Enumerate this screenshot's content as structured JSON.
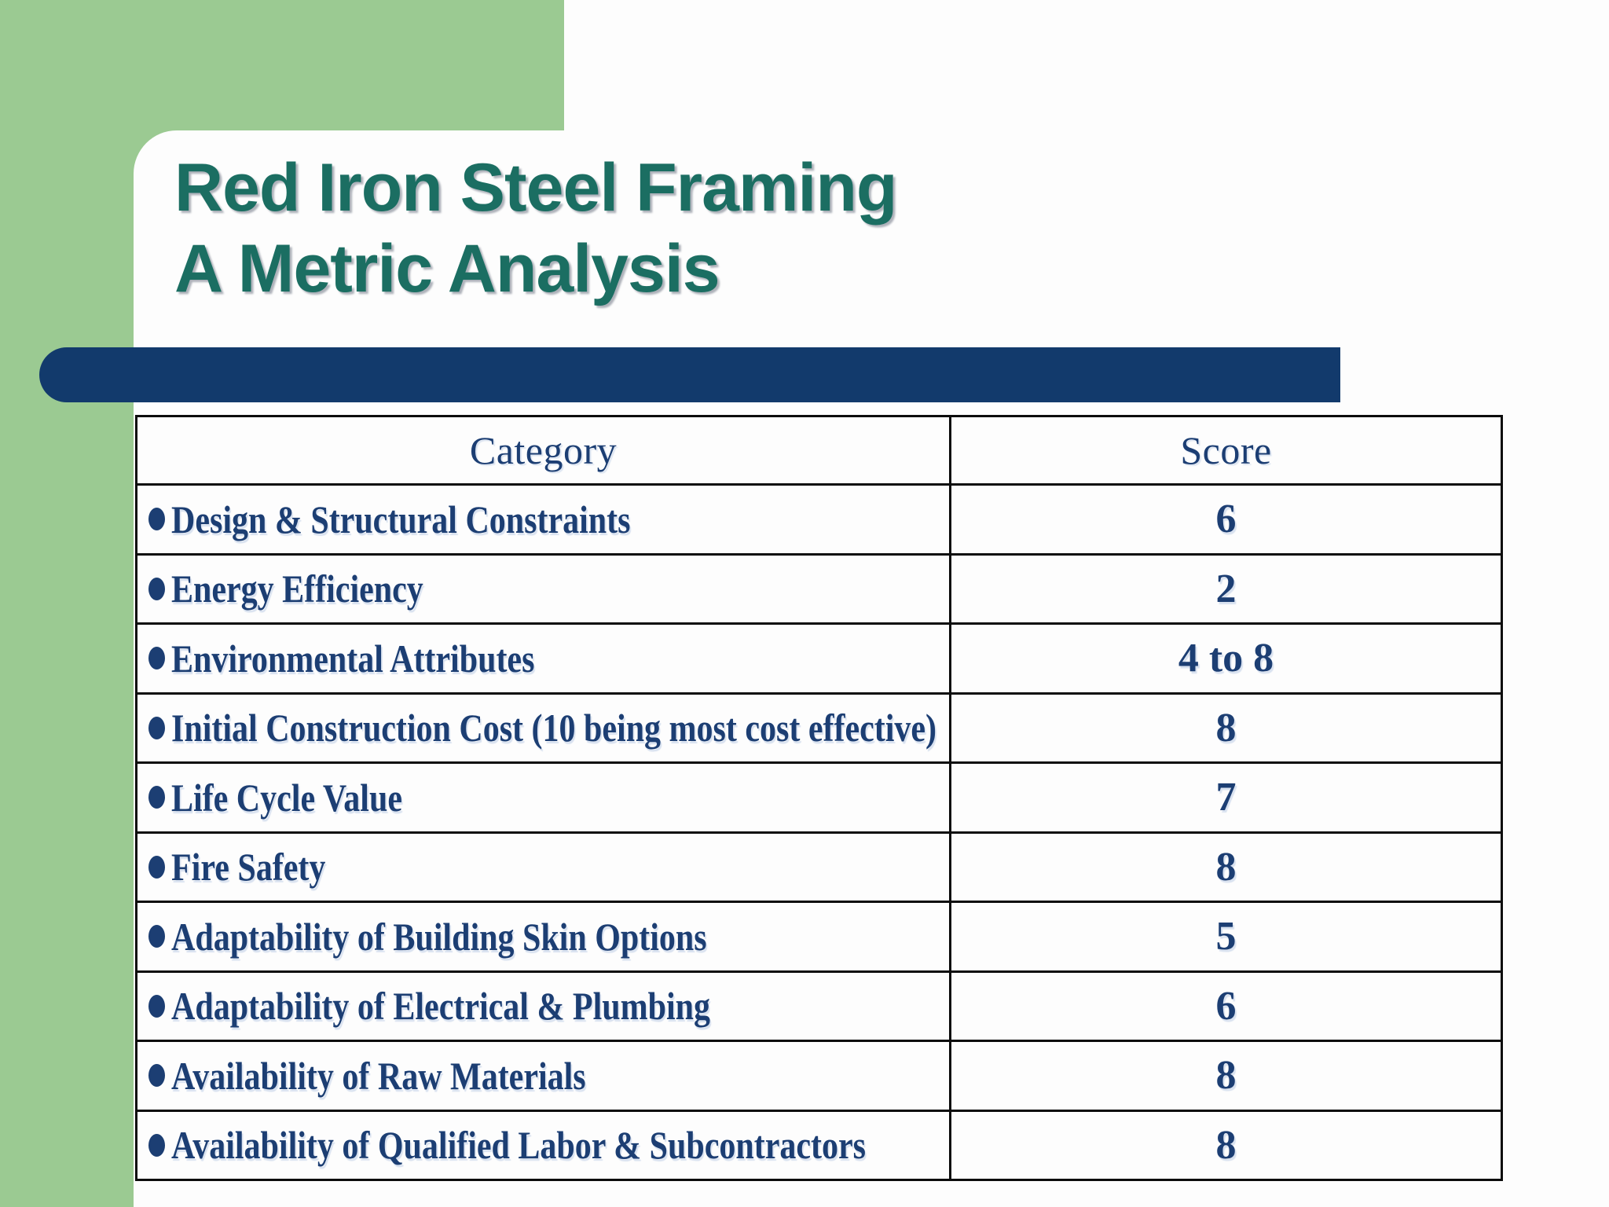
{
  "slide": {
    "title_line1": "Red Iron Steel Framing",
    "title_line2": "A Metric Analysis"
  },
  "colors": {
    "green": "#9BCA92",
    "navy_bar": "#123A6C",
    "text_navy": "#1C3E73",
    "title_teal": "#1B6E62",
    "table_border": "#0c0c0c"
  },
  "table": {
    "columns": [
      "Category",
      "Score"
    ],
    "rows": [
      {
        "category": "Design & Structural Constraints",
        "score": "6"
      },
      {
        "category": "Energy Efficiency",
        "score": "2"
      },
      {
        "category": "Environmental Attributes",
        "score": "4 to 8"
      },
      {
        "category": "Initial Construction Cost (10 being most cost effective)",
        "score": "8"
      },
      {
        "category": "Life Cycle Value",
        "score": "7"
      },
      {
        "category": "Fire Safety",
        "score": "8"
      },
      {
        "category": "Adaptability of Building Skin Options",
        "score": "5"
      },
      {
        "category": "Adaptability of Electrical & Plumbing",
        "score": "6"
      },
      {
        "category": "Availability of Raw Materials",
        "score": "8"
      },
      {
        "category": "Availability of Qualified Labor & Subcontractors",
        "score": "8"
      }
    ]
  }
}
